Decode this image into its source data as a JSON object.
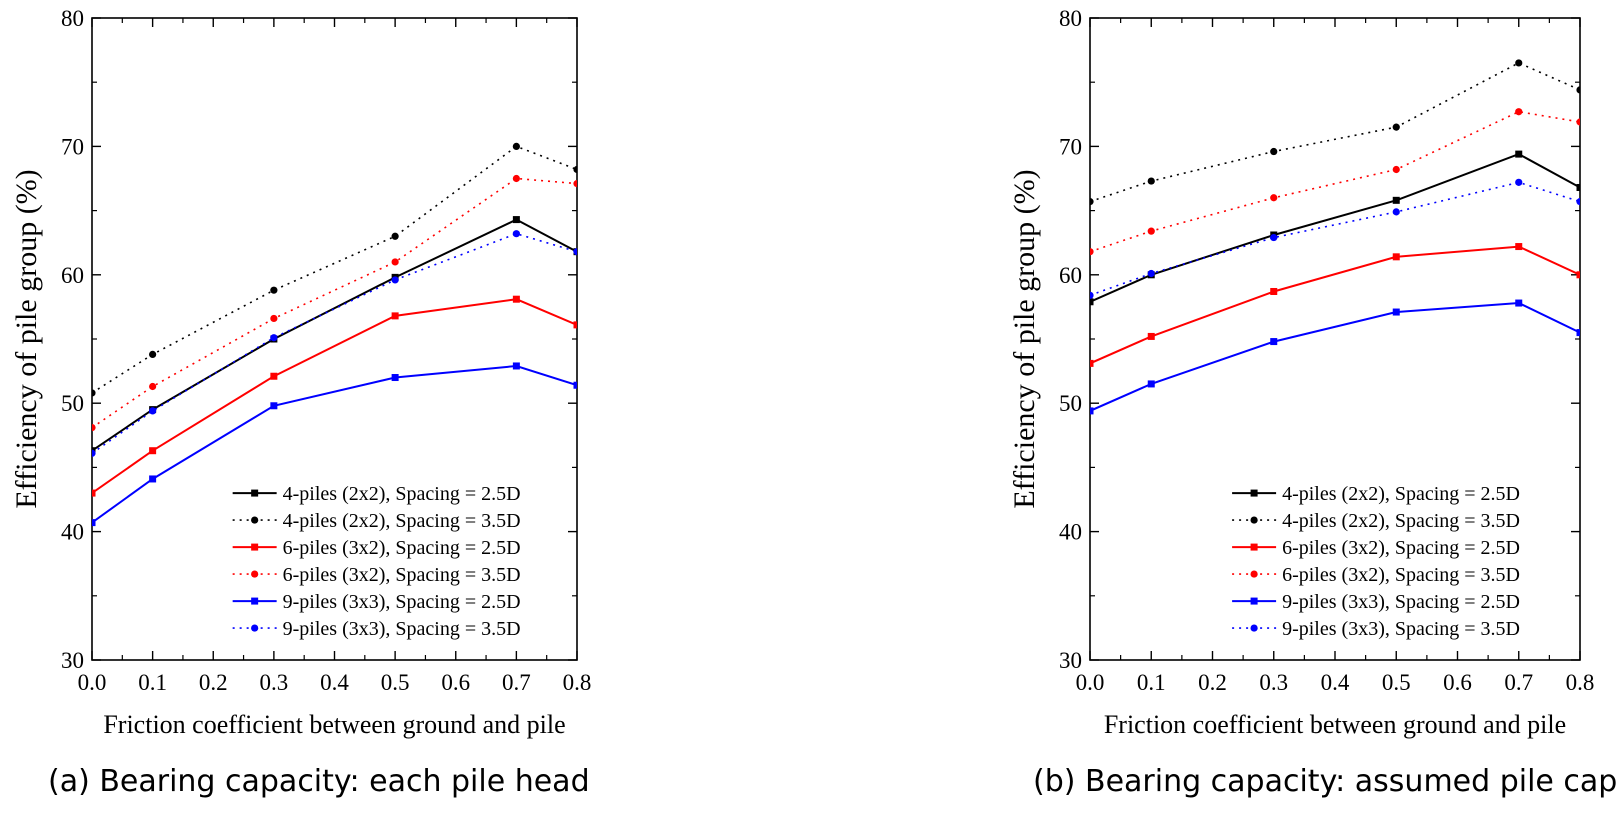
{
  "figure": {
    "panels": [
      {
        "caption": "(a) Bearing capacity: each pile head"
      },
      {
        "caption": "(b) Bearing capacity: assumed pile cap"
      }
    ]
  },
  "chart_data": [
    {
      "type": "line",
      "xlabel": "Friction coefficient between ground and pile",
      "ylabel": "Efficiency of pile group (%)",
      "xlim": [
        0.0,
        0.8
      ],
      "ylim": [
        30,
        80
      ],
      "x_ticks": [
        0.0,
        0.1,
        0.2,
        0.3,
        0.4,
        0.5,
        0.6,
        0.7,
        0.8
      ],
      "x_tick_labels": [
        "0.0",
        "0.1",
        "0.2",
        "0.3",
        "0.4",
        "0.5",
        "0.6",
        "0.7",
        "0.8"
      ],
      "y_ticks": [
        30,
        40,
        50,
        60,
        70,
        80
      ],
      "y_tick_labels": [
        "30",
        "40",
        "50",
        "60",
        "70",
        "80"
      ],
      "grid": false,
      "legend_position": "bottom-right",
      "x": [
        0.0,
        0.1,
        0.3,
        0.5,
        0.7,
        0.8
      ],
      "series": [
        {
          "name": "4-piles (2x2), Spacing = 2.5D",
          "color": "#000000",
          "style": "solid",
          "marker": "square",
          "values": [
            46.3,
            49.5,
            55.0,
            59.8,
            64.3,
            61.8
          ]
        },
        {
          "name": "4-piles (2x2), Spacing = 3.5D",
          "color": "#000000",
          "style": "dotted",
          "marker": "circle",
          "values": [
            50.8,
            53.8,
            58.8,
            63.0,
            70.0,
            68.2
          ]
        },
        {
          "name": "6-piles (3x2), Spacing = 2.5D",
          "color": "#ff0000",
          "style": "solid",
          "marker": "square",
          "values": [
            43.0,
            46.3,
            52.1,
            56.8,
            58.1,
            56.1
          ]
        },
        {
          "name": "6-piles (3x2), Spacing = 3.5D",
          "color": "#ff0000",
          "style": "dotted",
          "marker": "circle",
          "values": [
            48.1,
            51.3,
            56.6,
            61.0,
            67.5,
            67.1
          ]
        },
        {
          "name": "9-piles (3x3), Spacing = 2.5D",
          "color": "#0000ff",
          "style": "solid",
          "marker": "square",
          "values": [
            40.7,
            44.1,
            49.8,
            52.0,
            52.9,
            51.4
          ]
        },
        {
          "name": "9-piles (3x3), Spacing = 3.5D",
          "color": "#0000ff",
          "style": "dotted",
          "marker": "circle",
          "values": [
            46.1,
            49.4,
            55.1,
            59.6,
            63.2,
            61.8
          ]
        }
      ]
    },
    {
      "type": "line",
      "xlabel": "Friction coefficient between ground and pile",
      "ylabel": "Efficiency of pile group (%)",
      "xlim": [
        0.0,
        0.8
      ],
      "ylim": [
        30,
        80
      ],
      "x_ticks": [
        0.0,
        0.1,
        0.2,
        0.3,
        0.4,
        0.5,
        0.6,
        0.7,
        0.8
      ],
      "x_tick_labels": [
        "0.0",
        "0.1",
        "0.2",
        "0.3",
        "0.4",
        "0.5",
        "0.6",
        "0.7",
        "0.8"
      ],
      "y_ticks": [
        30,
        40,
        50,
        60,
        70,
        80
      ],
      "y_tick_labels": [
        "30",
        "40",
        "50",
        "60",
        "70",
        "80"
      ],
      "grid": false,
      "legend_position": "bottom-right",
      "x": [
        0.0,
        0.1,
        0.3,
        0.5,
        0.7,
        0.8
      ],
      "series": [
        {
          "name": "4-piles (2x2), Spacing = 2.5D",
          "color": "#000000",
          "style": "solid",
          "marker": "square",
          "values": [
            57.9,
            60.0,
            63.1,
            65.8,
            69.4,
            66.8
          ]
        },
        {
          "name": "4-piles (2x2), Spacing = 3.5D",
          "color": "#000000",
          "style": "dotted",
          "marker": "circle",
          "values": [
            65.7,
            67.3,
            69.6,
            71.5,
            76.5,
            74.4
          ]
        },
        {
          "name": "6-piles (3x2), Spacing = 2.5D",
          "color": "#ff0000",
          "style": "solid",
          "marker": "square",
          "values": [
            53.1,
            55.2,
            58.7,
            61.4,
            62.2,
            60.0
          ]
        },
        {
          "name": "6-piles (3x2), Spacing = 3.5D",
          "color": "#ff0000",
          "style": "dotted",
          "marker": "circle",
          "values": [
            61.8,
            63.4,
            66.0,
            68.2,
            72.7,
            71.9
          ]
        },
        {
          "name": "9-piles (3x3), Spacing = 2.5D",
          "color": "#0000ff",
          "style": "solid",
          "marker": "square",
          "values": [
            49.4,
            51.5,
            54.8,
            57.1,
            57.8,
            55.5
          ]
        },
        {
          "name": "9-piles (3x3), Spacing = 3.5D",
          "color": "#0000ff",
          "style": "dotted",
          "marker": "circle",
          "values": [
            58.4,
            60.1,
            62.9,
            64.9,
            67.2,
            65.7
          ]
        }
      ]
    }
  ]
}
